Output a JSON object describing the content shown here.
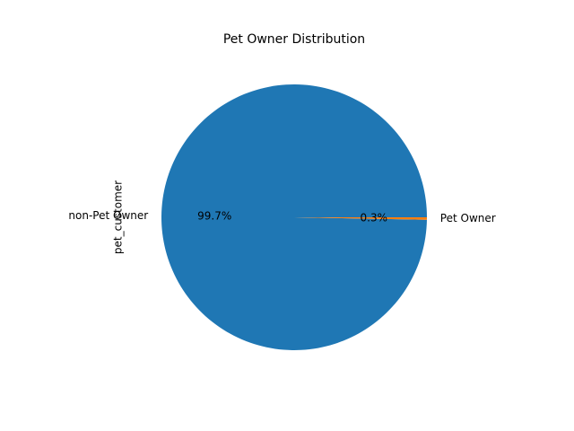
{
  "chart_data": {
    "type": "pie",
    "title": "Pet Owner Distribution",
    "ylabel": "pet_customer",
    "categories": [
      "non-Pet Owner",
      "Pet Owner"
    ],
    "values": [
      99.7,
      0.3
    ],
    "value_labels": [
      "99.7%",
      "0.3%"
    ],
    "colors": [
      "#1f77b4",
      "#ff7f0e"
    ]
  }
}
